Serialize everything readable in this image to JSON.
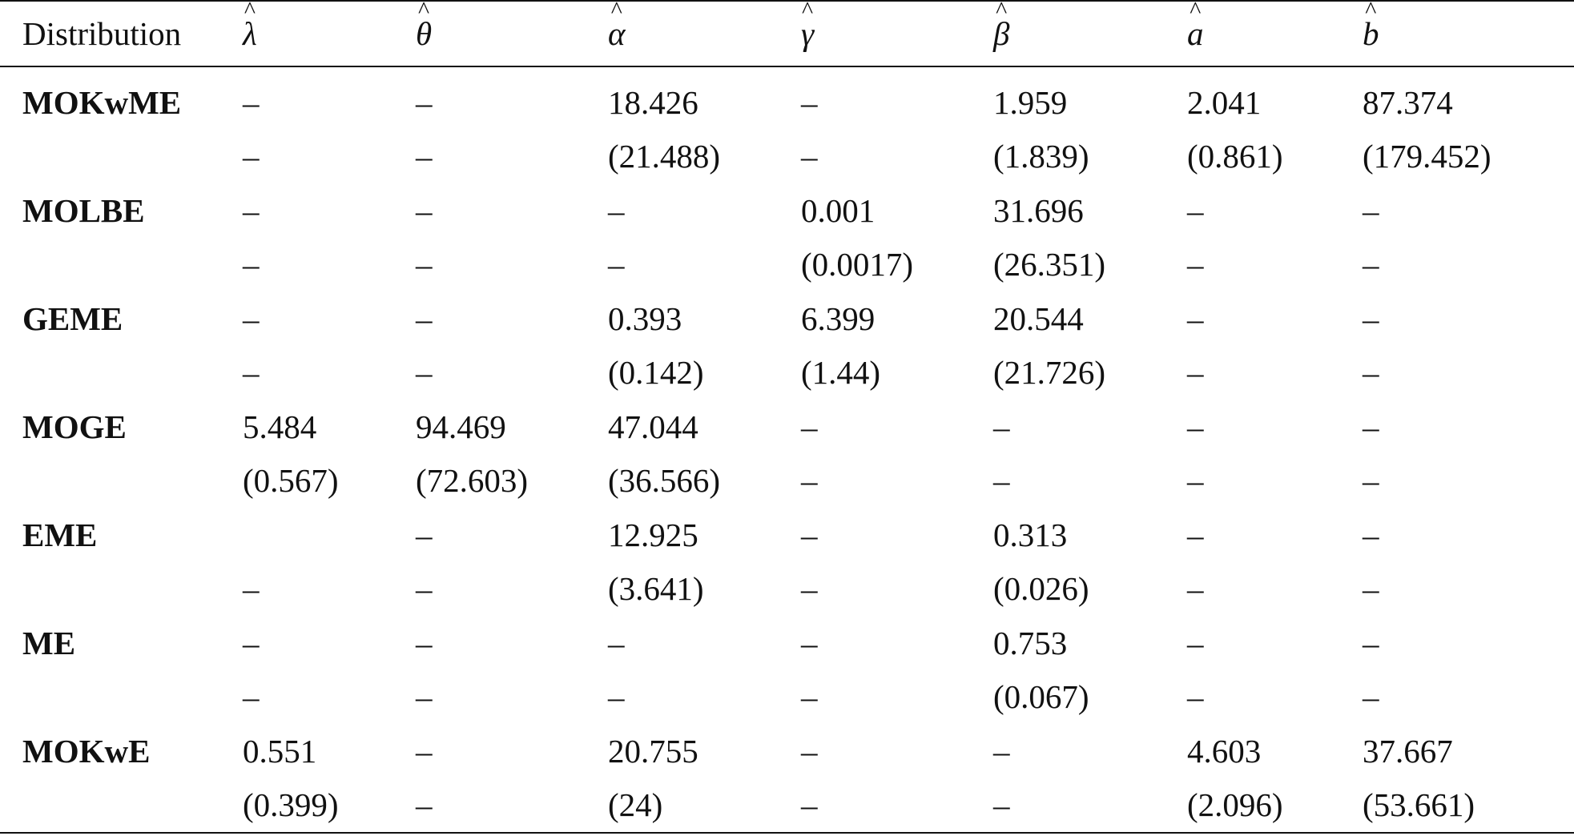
{
  "headers": {
    "distribution": "Distribution",
    "lambda": "λ",
    "theta": "θ",
    "alpha": "α",
    "gamma": "γ",
    "beta": "β",
    "a": "a",
    "b": "b",
    "hat": "^"
  },
  "rows": [
    {
      "name": "MOKwME",
      "est": [
        "–",
        "–",
        "18.426",
        "–",
        "1.959",
        "2.041",
        "87.374"
      ],
      "se": [
        "–",
        "–",
        "(21.488)",
        "–",
        "(1.839)",
        "(0.861)",
        "(179.452)"
      ]
    },
    {
      "name": "MOLBE",
      "est": [
        "–",
        "–",
        "–",
        "0.001",
        "31.696",
        "–",
        "–"
      ],
      "se": [
        "–",
        "–",
        "–",
        "(0.0017)",
        "(26.351)",
        "–",
        "–"
      ]
    },
    {
      "name": "GEME",
      "est": [
        "–",
        "–",
        "0.393",
        "6.399",
        "20.544",
        "–",
        "–"
      ],
      "se": [
        "–",
        "–",
        "(0.142)",
        "(1.44)",
        "(21.726)",
        "–",
        "–"
      ]
    },
    {
      "name": "MOGE",
      "est": [
        "5.484",
        "94.469",
        "47.044",
        "–",
        "–",
        "–",
        "–"
      ],
      "se": [
        "(0.567)",
        "(72.603)",
        "(36.566)",
        "–",
        "–",
        "–",
        "–"
      ]
    },
    {
      "name": "EME",
      "est": [
        "",
        "–",
        "12.925",
        "–",
        "0.313",
        "–",
        "–"
      ],
      "se": [
        "–",
        "–",
        "(3.641)",
        "–",
        "(0.026)",
        "–",
        "–"
      ]
    },
    {
      "name": "ME",
      "est": [
        "–",
        "–",
        "–",
        "–",
        "0.753",
        "–",
        "–"
      ],
      "se": [
        "–",
        "–",
        "–",
        "–",
        "(0.067)",
        "–",
        "–"
      ]
    },
    {
      "name": "MOKwE",
      "est": [
        "0.551",
        "–",
        "20.755",
        "–",
        "–",
        "4.603",
        "37.667"
      ],
      "se": [
        "(0.399)",
        "–",
        "(24)",
        "–",
        "–",
        "(2.096)",
        "(53.661)"
      ]
    }
  ]
}
